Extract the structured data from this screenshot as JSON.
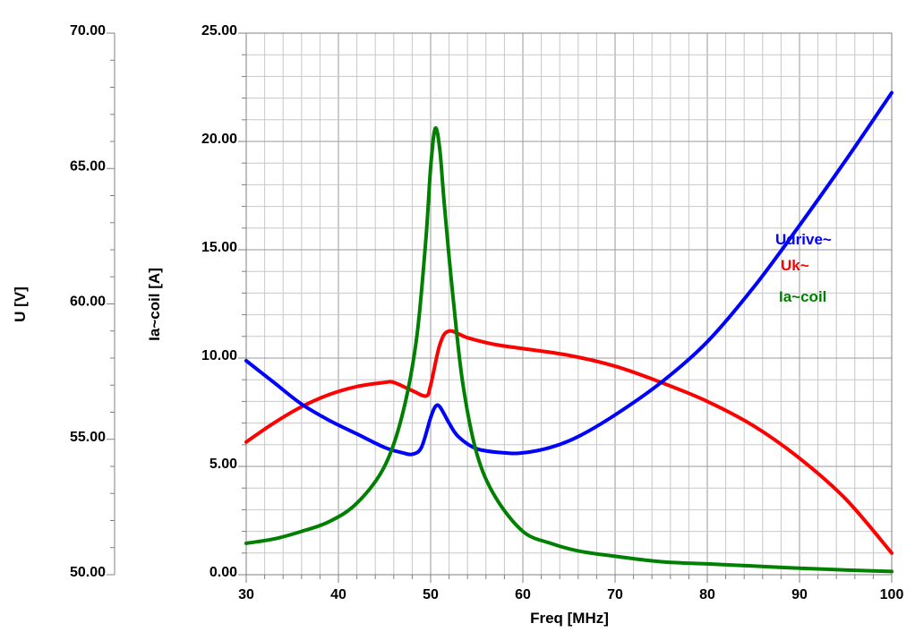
{
  "chart_data": {
    "type": "line",
    "xlabel": "Freq [MHz]",
    "x_ticks": [
      "30",
      "40",
      "50",
      "60",
      "70",
      "80",
      "90",
      "100"
    ],
    "xlim": [
      30,
      100
    ],
    "axes": [
      {
        "label": "U [V]",
        "ylim": [
          50,
          70
        ],
        "ticks": [
          "50.00",
          "55.00",
          "60.00",
          "65.00",
          "70.00"
        ],
        "tick_values": [
          50,
          55,
          60,
          65,
          70
        ]
      },
      {
        "label": "Ia~coil [A]",
        "ylim": [
          0,
          25
        ],
        "ticks": [
          "0.00",
          "5.00",
          "10.00",
          "15.00",
          "20.00",
          "25.00"
        ],
        "tick_values": [
          0,
          5,
          10,
          15,
          20,
          25
        ]
      }
    ],
    "grid": true,
    "legend_position": "right",
    "series": [
      {
        "name": "Udrive~",
        "color": "#0000ff",
        "axis": "U [V]",
        "points": [
          [
            30,
            57.9
          ],
          [
            33,
            57.1
          ],
          [
            36,
            56.3
          ],
          [
            39,
            55.7
          ],
          [
            42,
            55.2
          ],
          [
            45,
            54.7
          ],
          [
            47,
            54.5
          ],
          [
            48,
            54.45
          ],
          [
            49,
            54.7
          ],
          [
            50,
            55.8
          ],
          [
            50.5,
            56.2
          ],
          [
            51,
            56.2
          ],
          [
            52,
            55.6
          ],
          [
            53,
            55.1
          ],
          [
            55,
            54.65
          ],
          [
            58,
            54.5
          ],
          [
            60,
            54.5
          ],
          [
            63,
            54.7
          ],
          [
            66,
            55.1
          ],
          [
            70,
            55.9
          ],
          [
            75,
            57.1
          ],
          [
            80,
            58.6
          ],
          [
            85,
            60.6
          ],
          [
            90,
            62.9
          ],
          [
            95,
            65.3
          ],
          [
            100,
            67.8
          ]
        ]
      },
      {
        "name": "Uk~",
        "color": "#ff0000",
        "axis": "U [V]",
        "points": [
          [
            30,
            54.9
          ],
          [
            33,
            55.6
          ],
          [
            36,
            56.2
          ],
          [
            39,
            56.65
          ],
          [
            42,
            56.95
          ],
          [
            45,
            57.1
          ],
          [
            46,
            57.1
          ],
          [
            48,
            56.8
          ],
          [
            49.5,
            56.6
          ],
          [
            50,
            57.0
          ],
          [
            51,
            58.5
          ],
          [
            52,
            59.0
          ],
          [
            54,
            58.75
          ],
          [
            57,
            58.5
          ],
          [
            60,
            58.35
          ],
          [
            65,
            58.1
          ],
          [
            70,
            57.7
          ],
          [
            75,
            57.1
          ],
          [
            80,
            56.4
          ],
          [
            85,
            55.5
          ],
          [
            90,
            54.3
          ],
          [
            95,
            52.8
          ],
          [
            100,
            50.8
          ]
        ]
      },
      {
        "name": "Ia~coil",
        "color": "#008000",
        "axis": "Ia~coil [A]",
        "points": [
          [
            30,
            1.45
          ],
          [
            33,
            1.65
          ],
          [
            36,
            2.0
          ],
          [
            39,
            2.45
          ],
          [
            42,
            3.3
          ],
          [
            45,
            5.0
          ],
          [
            47,
            7.5
          ],
          [
            48.5,
            11.0
          ],
          [
            49.5,
            15.6
          ],
          [
            50,
            18.8
          ],
          [
            50.5,
            20.6
          ],
          [
            51,
            19.6
          ],
          [
            51.5,
            17.0
          ],
          [
            52.5,
            12.5
          ],
          [
            53.5,
            8.8
          ],
          [
            55,
            5.6
          ],
          [
            57,
            3.6
          ],
          [
            60,
            2.0
          ],
          [
            63,
            1.45
          ],
          [
            66,
            1.1
          ],
          [
            70,
            0.85
          ],
          [
            75,
            0.6
          ],
          [
            80,
            0.5
          ],
          [
            85,
            0.4
          ],
          [
            90,
            0.3
          ],
          [
            95,
            0.22
          ],
          [
            100,
            0.15
          ]
        ]
      }
    ]
  }
}
